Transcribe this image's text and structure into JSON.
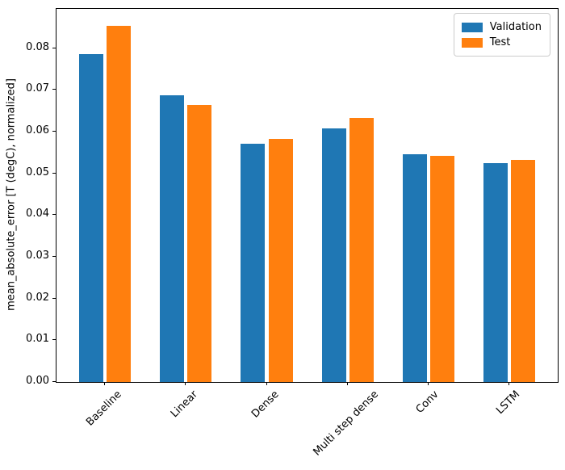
{
  "chart_data": {
    "type": "bar",
    "title": "",
    "xlabel": "",
    "ylabel": "mean_absolute_error [T (degC), normalized]",
    "categories": [
      "Baseline",
      "Linear",
      "Dense",
      "Multi step dense",
      "Conv",
      "LSTM"
    ],
    "series": [
      {
        "name": "Validation",
        "color": "#1f77b4",
        "values": [
          0.0785,
          0.0687,
          0.0571,
          0.0607,
          0.0545,
          0.0524
        ]
      },
      {
        "name": "Test",
        "color": "#ff7f0e",
        "values": [
          0.0853,
          0.0664,
          0.0582,
          0.0633,
          0.0542,
          0.0533
        ]
      }
    ],
    "ylim": [
      0,
      0.0894
    ],
    "ytick_values": [
      0.0,
      0.01,
      0.02,
      0.03,
      0.04,
      0.05,
      0.06,
      0.07,
      0.08
    ],
    "ytick_labels": [
      "0.00",
      "0.01",
      "0.02",
      "0.03",
      "0.04",
      "0.05",
      "0.06",
      "0.07",
      "0.08"
    ],
    "xtick_rotation": 45,
    "grid": false,
    "legend_position": "upper right",
    "legend_entries": [
      "Validation",
      "Test"
    ]
  }
}
